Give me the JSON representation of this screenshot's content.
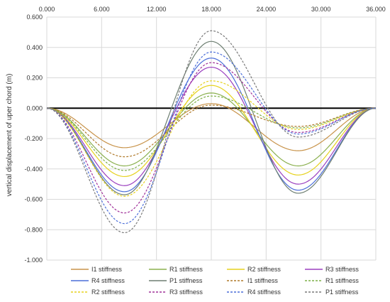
{
  "chart_data": {
    "type": "line",
    "title": "",
    "xlabel": "",
    "ylabel": "vertical displacement of uper chord (m)",
    "xlim": [
      0,
      36
    ],
    "ylim": [
      -1.0,
      0.6
    ],
    "x_axis_position": "top",
    "x_ticks": [
      0,
      6,
      12,
      18,
      24,
      30,
      36
    ],
    "x_tick_labels": [
      "0.000",
      "6.000",
      "12.000",
      "18.000",
      "24.000",
      "30.000",
      "36.000"
    ],
    "y_ticks": [
      0.6,
      0.4,
      0.2,
      0.0,
      -0.2,
      -0.4,
      -0.6,
      -0.8,
      -1.0
    ],
    "y_tick_labels": [
      "0.600",
      "0.400",
      "0.200",
      "0.000",
      "-0.200",
      "-0.400",
      "-0.600",
      "-0.800",
      "-1.000"
    ],
    "grid": true,
    "legend_position": "bottom",
    "shape_note_points": [
      0,
      8.5,
      18,
      27.5,
      36
    ],
    "series": [
      {
        "name": "I1 stiffness",
        "color": "#C8934A",
        "dash": "solid",
        "x": [
          0,
          8.5,
          18,
          27.5,
          36
        ],
        "y": [
          0,
          -0.26,
          0.03,
          -0.28,
          0
        ]
      },
      {
        "name": "R1 stiffness",
        "color": "#8BB04F",
        "dash": "solid",
        "x": [
          0,
          8.5,
          18,
          27.5,
          36
        ],
        "y": [
          0,
          -0.38,
          0.1,
          -0.38,
          0
        ]
      },
      {
        "name": "R2 stiffness",
        "color": "#E6D21E",
        "dash": "solid",
        "x": [
          0,
          8.5,
          18,
          27.5,
          36
        ],
        "y": [
          0,
          -0.45,
          0.15,
          -0.44,
          0
        ]
      },
      {
        "name": "R3 stiffness",
        "color": "#9B3FBF",
        "dash": "solid",
        "x": [
          0,
          8.5,
          18,
          27.5,
          36
        ],
        "y": [
          0,
          -0.51,
          0.27,
          -0.5,
          0
        ]
      },
      {
        "name": "R4 stiffness",
        "color": "#4C6FD9",
        "dash": "solid",
        "x": [
          0,
          8.5,
          18,
          27.5,
          36
        ],
        "y": [
          0,
          -0.55,
          0.33,
          -0.54,
          0
        ]
      },
      {
        "name": "P1 stiffness",
        "color": "#6E7F72",
        "dash": "solid",
        "x": [
          0,
          8.5,
          18,
          27.5,
          36
        ],
        "y": [
          0,
          -0.57,
          0.44,
          -0.56,
          0
        ]
      },
      {
        "name": "I1 stiffness",
        "color": "#B07A2A",
        "dash": "dashed",
        "x": [
          0,
          8.5,
          18,
          27.5,
          36
        ],
        "y": [
          0,
          -0.32,
          0.02,
          -0.12,
          0
        ]
      },
      {
        "name": "R1 stiffness",
        "color": "#7FB048",
        "dash": "dashed",
        "x": [
          0,
          8.5,
          18,
          27.5,
          36
        ],
        "y": [
          0,
          -0.41,
          0.08,
          -0.13,
          0
        ]
      },
      {
        "name": "R2 stiffness",
        "color": "#E6D21E",
        "dash": "dashed",
        "x": [
          0,
          8.5,
          18,
          27.5,
          36
        ],
        "y": [
          0,
          -0.58,
          0.18,
          -0.14,
          0
        ]
      },
      {
        "name": "R3 stiffness",
        "color": "#A0329A",
        "dash": "dashed",
        "x": [
          0,
          8.5,
          18,
          27.5,
          36
        ],
        "y": [
          0,
          -0.69,
          0.3,
          -0.16,
          0
        ]
      },
      {
        "name": "R4 stiffness",
        "color": "#4C6FD9",
        "dash": "dashed",
        "x": [
          0,
          8.5,
          18,
          27.5,
          36
        ],
        "y": [
          0,
          -0.76,
          0.37,
          -0.17,
          0
        ]
      },
      {
        "name": "P1 stiffness",
        "color": "#7A7A7A",
        "dash": "dashed",
        "x": [
          0,
          8.5,
          18,
          27.5,
          36
        ],
        "y": [
          0,
          -0.82,
          0.51,
          -0.19,
          0
        ]
      }
    ]
  }
}
